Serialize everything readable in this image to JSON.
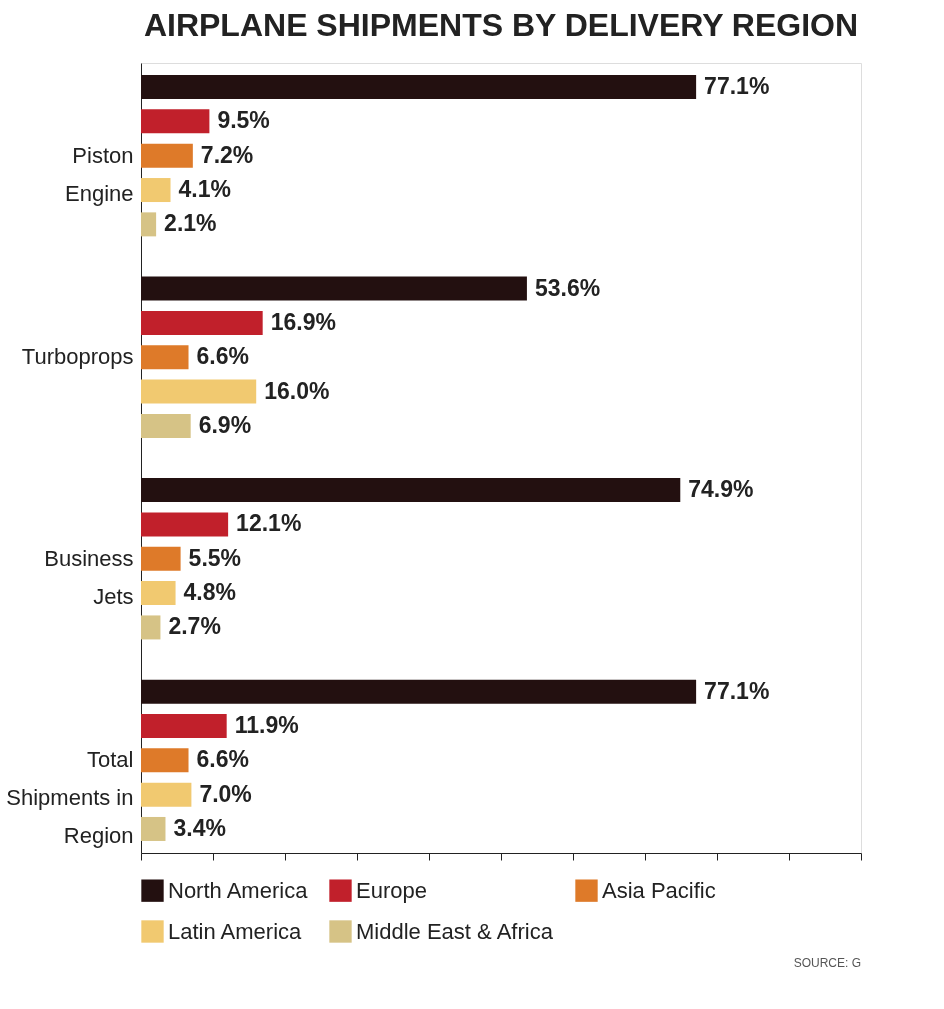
{
  "chart_data": {
    "type": "bar",
    "orientation": "horizontal",
    "title": "AIRPLANE SHIPMENTS BY DELIVERY REGION",
    "categories": [
      "Piston Engine",
      "Turboprops",
      "Business Jets",
      "Total Shipments in Region"
    ],
    "series": [
      {
        "name": "North America",
        "color": "#231010",
        "values": [
          77.1,
          53.6,
          74.9,
          77.1
        ],
        "value_labels": [
          "77.1%",
          "53.6%",
          "74.9%",
          "77.1%"
        ]
      },
      {
        "name": "Europe",
        "color": "#c1202b",
        "values": [
          9.5,
          16.9,
          12.1,
          11.9
        ],
        "value_labels": [
          "9.5%",
          "16.9%",
          "12.1%",
          "11.9%"
        ]
      },
      {
        "name": "Asia Pacific",
        "color": "#de7a29",
        "values": [
          7.2,
          6.6,
          5.5,
          6.6
        ],
        "value_labels": [
          "7.2%",
          "6.6%",
          "5.5%",
          "6.6%"
        ]
      },
      {
        "name": "Latin America",
        "color": "#f1c970",
        "values": [
          4.1,
          16.0,
          4.8,
          7.0
        ],
        "value_labels": [
          "4.1%",
          "16.0%",
          "4.8%",
          "7.0%"
        ]
      },
      {
        "name": "Middle East & Africa",
        "color": "#d6c386",
        "values": [
          2.1,
          6.9,
          2.7,
          3.4
        ],
        "value_labels": [
          "2.1%",
          "6.9%",
          "2.7%",
          "3.4%"
        ]
      }
    ],
    "xlim": [
      0,
      100
    ],
    "xticks": [
      {
        "value": 0,
        "label": null
      },
      {
        "value": 10,
        "label": null
      },
      {
        "value": 20,
        "label": null
      },
      {
        "value": 30,
        "label": null
      },
      {
        "value": 40,
        "label": null
      },
      {
        "value": 50,
        "label": null
      },
      {
        "value": 60,
        "label": null
      },
      {
        "value": 70,
        "label": null
      },
      {
        "value": 80,
        "label": null
      },
      {
        "value": 90,
        "label": null
      },
      {
        "value": 100,
        "label": null
      }
    ],
    "tick_labels": "y",
    "grid": false,
    "legend": "bottom",
    "annotations": [
      "SOURCE: G"
    ]
  }
}
